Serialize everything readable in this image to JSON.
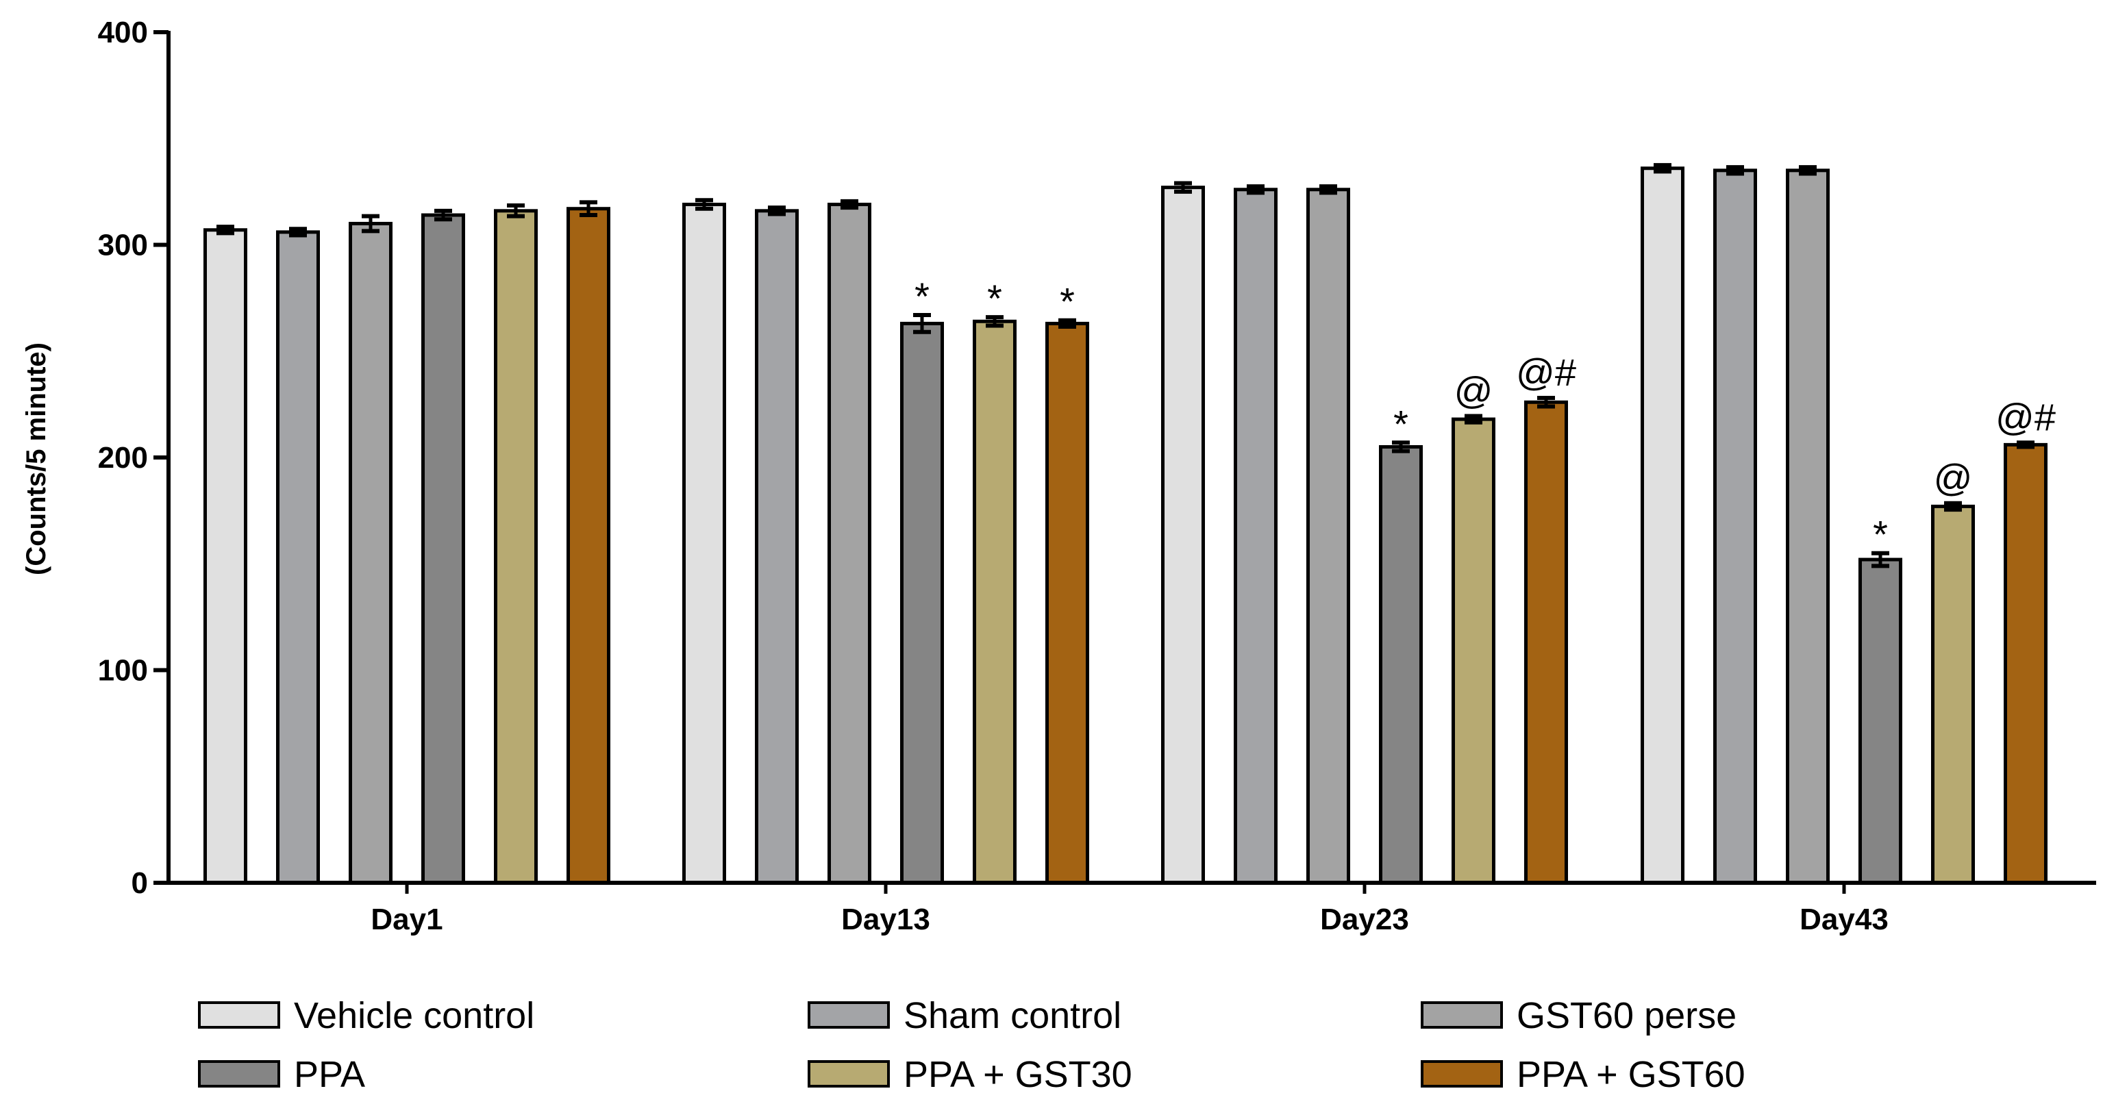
{
  "chart_data": {
    "type": "bar",
    "title": "",
    "xlabel": "",
    "ylabel": "(Counts/5 minute)",
    "ylim": [
      0,
      400
    ],
    "yticks": [
      0,
      100,
      200,
      300,
      400
    ],
    "categories": [
      "Day1",
      "Day13",
      "Day23",
      "Day43"
    ],
    "legend_position": "bottom",
    "series": [
      {
        "name": "Vehicle control",
        "color": "#e0e0e0",
        "values": [
          307,
          319,
          327,
          336
        ],
        "errors": [
          1.5,
          2,
          2,
          1.5
        ],
        "annotations": [
          "",
          "",
          "",
          ""
        ]
      },
      {
        "name": "Sham control",
        "color": "#a3a4a7",
        "values": [
          306,
          316,
          326,
          335
        ],
        "errors": [
          1.5,
          1.5,
          1.5,
          1.5
        ],
        "annotations": [
          "",
          "",
          "",
          ""
        ]
      },
      {
        "name": "GST60 perse",
        "color": "#a3a3a3",
        "values": [
          310,
          319,
          326,
          335
        ],
        "errors": [
          3.5,
          1.5,
          1.5,
          1.5
        ],
        "annotations": [
          "",
          "",
          "",
          ""
        ]
      },
      {
        "name": "PPA",
        "color": "#858585",
        "values": [
          314,
          263,
          205,
          152
        ],
        "errors": [
          2,
          4,
          2,
          3
        ],
        "annotations": [
          "",
          "*",
          "*",
          "*"
        ]
      },
      {
        "name": "PPA + GST30",
        "color": "#b7aa72",
        "values": [
          316,
          264,
          218,
          177
        ],
        "errors": [
          2.5,
          2,
          1.5,
          1.5
        ],
        "annotations": [
          "",
          "*",
          "@",
          "@"
        ]
      },
      {
        "name": "PPA + GST60",
        "color": "#a36313",
        "values": [
          317,
          263,
          226,
          206
        ],
        "errors": [
          3,
          1.5,
          2,
          1
        ],
        "annotations": [
          "",
          "*",
          "@#",
          "@#"
        ]
      }
    ]
  }
}
